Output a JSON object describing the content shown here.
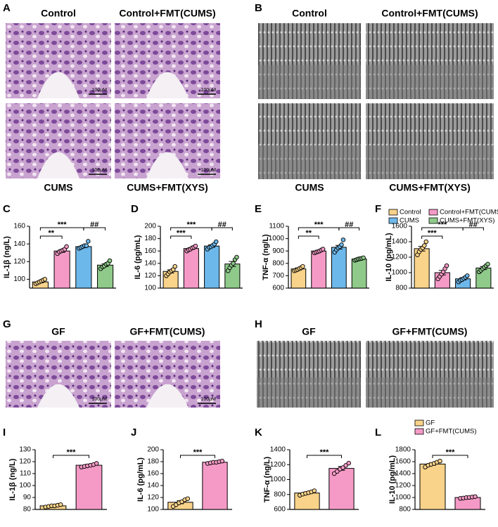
{
  "image_panels": [
    {
      "letter": "A",
      "images": [
        {
          "caption": "Control",
          "scale_bar": "100μM"
        },
        {
          "caption": "Control+FMT(CUMS)",
          "scale_bar": "100μM"
        },
        {
          "caption": "CUMS",
          "scale_bar": "100μM"
        },
        {
          "caption": "CUMS+FMT(XYS)",
          "scale_bar": "100μM"
        }
      ]
    },
    {
      "letter": "B",
      "images": [
        {
          "caption": "Control"
        },
        {
          "caption": "Control+FMT(CUMS)"
        },
        {
          "caption": "CUMS"
        },
        {
          "caption": "CUMS+FMT(XYS)"
        }
      ]
    },
    {
      "letter": "G",
      "images": [
        {
          "caption": "GF",
          "scale_bar": "100μM"
        },
        {
          "caption": "GF+FMT(CUMS)",
          "scale_bar": "100μM"
        }
      ]
    },
    {
      "letter": "H",
      "images": [
        {
          "caption": "GF"
        },
        {
          "caption": "GF+FMT(CUMS)"
        }
      ]
    }
  ],
  "chart_data": [
    {
      "type": "bar",
      "panel": "C",
      "ylabel": "IL-1β (ng/L)",
      "ylim": [
        90,
        160
      ],
      "yticks": [
        100,
        120,
        140,
        160
      ],
      "categories": [
        null,
        null,
        null,
        null
      ],
      "colors": [
        "#f9d38a",
        "#f59ac6",
        "#6db8ea",
        "#8fca8a"
      ],
      "values": [
        97,
        132,
        137,
        116
      ],
      "errors": [
        1,
        1.5,
        1.2,
        1.5
      ],
      "points": [
        [
          95,
          96,
          97,
          98,
          99,
          100
        ],
        [
          129,
          131,
          132,
          133,
          134,
          137
        ],
        [
          135,
          136,
          137,
          138,
          138,
          143
        ],
        [
          112,
          114,
          115,
          117,
          118,
          121
        ]
      ],
      "annotations": [
        {
          "text": "**",
          "between": [
            0,
            1
          ]
        },
        {
          "text": "***",
          "between": [
            0,
            2
          ]
        },
        {
          "text": "##",
          "between": [
            2,
            3
          ]
        }
      ]
    },
    {
      "type": "bar",
      "panel": "D",
      "ylabel": "IL-6 (pg/mL)",
      "ylim": [
        100,
        200
      ],
      "yticks": [
        100,
        120,
        140,
        160,
        180,
        200
      ],
      "categories": [
        null,
        null,
        null,
        null
      ],
      "colors": [
        "#f9d38a",
        "#f59ac6",
        "#6db8ea",
        "#8fca8a"
      ],
      "values": [
        127,
        164,
        168,
        139
      ],
      "errors": [
        2.5,
        1.5,
        2,
        4
      ],
      "points": [
        [
          120,
          123,
          126,
          128,
          130,
          135
        ],
        [
          160,
          162,
          163,
          165,
          166,
          168
        ],
        [
          163,
          166,
          167,
          169,
          171,
          175
        ],
        [
          128,
          133,
          137,
          140,
          146,
          150
        ]
      ],
      "annotations": [
        {
          "text": "***",
          "between": [
            0,
            1
          ]
        },
        {
          "text": "***",
          "between": [
            0,
            2
          ]
        },
        {
          "text": "##",
          "between": [
            2,
            3
          ]
        }
      ]
    },
    {
      "type": "bar",
      "panel": "E",
      "ylabel": "TNF-α (ng/L)",
      "ylim": [
        600,
        1100
      ],
      "yticks": [
        600,
        700,
        800,
        900,
        1000,
        1100
      ],
      "categories": [
        null,
        null,
        null,
        null
      ],
      "colors": [
        "#f9d38a",
        "#f59ac6",
        "#6db8ea",
        "#8fca8a"
      ],
      "values": [
        755,
        900,
        930,
        835
      ],
      "errors": [
        8,
        6,
        15,
        4
      ],
      "points": [
        [
          740,
          745,
          750,
          758,
          765,
          775
        ],
        [
          885,
          890,
          895,
          900,
          908,
          915
        ],
        [
          890,
          910,
          925,
          935,
          950,
          990
        ],
        [
          825,
          830,
          835,
          838,
          840,
          845
        ]
      ],
      "annotations": [
        {
          "text": "**",
          "between": [
            0,
            1
          ]
        },
        {
          "text": "***",
          "between": [
            0,
            2
          ]
        },
        {
          "text": "##",
          "between": [
            2,
            3
          ]
        }
      ]
    },
    {
      "type": "bar",
      "panel": "F",
      "ylabel": "IL-10 (pg/mL)",
      "ylim": [
        800,
        1600
      ],
      "yticks": [
        800,
        1000,
        1200,
        1400,
        1600
      ],
      "categories": [
        null,
        null,
        null,
        null
      ],
      "colors": [
        "#f9d38a",
        "#f59ac6",
        "#6db8ea",
        "#8fca8a"
      ],
      "values": [
        1310,
        1000,
        920,
        1060
      ],
      "errors": [
        30,
        30,
        15,
        20
      ],
      "points": [
        [
          1230,
          1270,
          1300,
          1320,
          1350,
          1400
        ],
        [
          920,
          950,
          980,
          1010,
          1050,
          1090
        ],
        [
          880,
          900,
          910,
          925,
          940,
          960
        ],
        [
          1010,
          1030,
          1050,
          1070,
          1090,
          1110
        ]
      ],
      "annotations": [
        {
          "text": "***",
          "between": [
            0,
            1
          ]
        },
        {
          "text": "***",
          "between": [
            0,
            2
          ]
        },
        {
          "text": "##",
          "between": [
            2,
            3
          ]
        }
      ],
      "legend": [
        {
          "name": "Control",
          "color": "#f9d38a"
        },
        {
          "name": "Control+FMT(CUMS)",
          "color": "#f59ac6"
        },
        {
          "name": "CUMS",
          "color": "#6db8ea"
        },
        {
          "name": "CUMS+FMT(XYS)",
          "color": "#8fca8a"
        }
      ]
    },
    {
      "type": "bar",
      "panel": "I",
      "ylabel": "IL-1β (ng/L)",
      "ylim": [
        80,
        130
      ],
      "yticks": [
        80,
        90,
        100,
        110,
        120,
        130
      ],
      "categories": [
        null,
        null
      ],
      "colors": [
        "#f9d38a",
        "#f59ac6"
      ],
      "values": [
        83,
        117
      ],
      "errors": [
        0.6,
        0.8
      ],
      "points": [
        [
          82,
          82.5,
          83,
          83,
          83.5,
          84
        ],
        [
          115.5,
          116,
          116.5,
          117,
          117.5,
          118.5
        ]
      ],
      "annotations": [
        {
          "text": "***",
          "between": [
            0,
            1
          ]
        }
      ]
    },
    {
      "type": "bar",
      "panel": "J",
      "ylabel": "IL-6 (pg/mL)",
      "ylim": [
        100,
        200
      ],
      "yticks": [
        100,
        120,
        140,
        160,
        180,
        200
      ],
      "categories": [
        null,
        null
      ],
      "colors": [
        "#f9d38a",
        "#f59ac6"
      ],
      "values": [
        112,
        179
      ],
      "errors": [
        2.5,
        1
      ],
      "points": [
        [
          105,
          108,
          111,
          113,
          116,
          118
        ],
        [
          177,
          178,
          179,
          179,
          180,
          181
        ]
      ],
      "annotations": [
        {
          "text": "***",
          "between": [
            0,
            1
          ]
        }
      ]
    },
    {
      "type": "bar",
      "panel": "K",
      "ylabel": "TNF-α (ng/L)",
      "ylim": [
        600,
        1400
      ],
      "yticks": [
        600,
        800,
        1000,
        1200,
        1400
      ],
      "categories": [
        null,
        null
      ],
      "colors": [
        "#f9d38a",
        "#f59ac6"
      ],
      "values": [
        820,
        1150
      ],
      "errors": [
        12,
        25
      ],
      "points": [
        [
          790,
          805,
          815,
          825,
          835,
          850
        ],
        [
          1080,
          1110,
          1140,
          1160,
          1190,
          1220
        ]
      ],
      "annotations": [
        {
          "text": "***",
          "between": [
            0,
            1
          ]
        }
      ]
    },
    {
      "type": "bar",
      "panel": "L",
      "ylabel": "IL-10 (pg/mL)",
      "ylim": [
        800,
        1800
      ],
      "yticks": [
        800,
        1000,
        1200,
        1400,
        1600,
        1800
      ],
      "categories": [
        null,
        null
      ],
      "colors": [
        "#f9d38a",
        "#f59ac6"
      ],
      "values": [
        1560,
        1000
      ],
      "errors": [
        20,
        8
      ],
      "points": [
        [
          1510,
          1540,
          1555,
          1570,
          1590,
          1610
        ],
        [
          985,
          990,
          998,
          1002,
          1008,
          1015
        ]
      ],
      "annotations": [
        {
          "text": "***",
          "between": [
            0,
            1
          ]
        }
      ],
      "legend": [
        {
          "name": "GF",
          "color": "#f9d38a"
        },
        {
          "name": "GF+FMT(CUMS)",
          "color": "#f59ac6"
        }
      ]
    }
  ]
}
